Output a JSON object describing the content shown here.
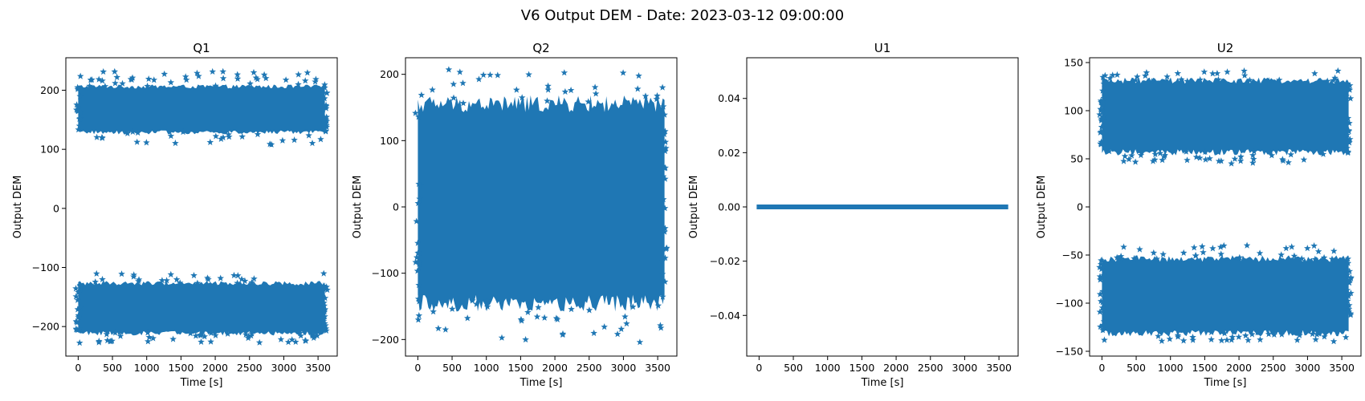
{
  "figure": {
    "title": "V6 Output DEM - Date: 2023-03-12 09:00:00"
  },
  "colors": {
    "series": "#1f77b4",
    "axes": "#000000",
    "background": "#ffffff"
  },
  "chart_data": [
    {
      "type": "scatter",
      "title": "Q1",
      "xlabel": "Time [s]",
      "ylabel": "Output DEM",
      "xlim": [
        -180,
        3780
      ],
      "ylim": [
        -250,
        255
      ],
      "xticks": [
        0,
        500,
        1000,
        1500,
        2000,
        2500,
        3000,
        3500
      ],
      "yticks": [
        -200,
        -100,
        0,
        100,
        200
      ],
      "marker": "star",
      "bands": [
        {
          "y_low": 130,
          "y_high": 205,
          "outlier_low": 108,
          "outlier_high": 232
        },
        {
          "y_low": -210,
          "y_high": -128,
          "outlier_low": -228,
          "outlier_high": -110
        }
      ],
      "x_range": [
        0,
        3600
      ]
    },
    {
      "type": "scatter",
      "title": "Q2",
      "xlabel": "Time [s]",
      "ylabel": "Output DEM",
      "xlim": [
        -180,
        3780
      ],
      "ylim": [
        -225,
        225
      ],
      "xticks": [
        0,
        500,
        1000,
        1500,
        2000,
        2500,
        3000,
        3500
      ],
      "yticks": [
        -200,
        -100,
        0,
        100,
        200
      ],
      "marker": "star",
      "bands": [
        {
          "y_low": -140,
          "y_high": 150,
          "outlier_low": -205,
          "outlier_high": 210
        }
      ],
      "x_range": [
        0,
        3600
      ]
    },
    {
      "type": "scatter",
      "title": "U1",
      "xlabel": "Time [s]",
      "ylabel": "Output DEM",
      "xlim": [
        -180,
        3780
      ],
      "ylim": [
        -0.055,
        0.055
      ],
      "xticks": [
        0,
        500,
        1000,
        1500,
        2000,
        2500,
        3000,
        3500
      ],
      "yticks": [
        -0.04,
        -0.02,
        0.0,
        0.02,
        0.04
      ],
      "ytick_labels": [
        "−0.04",
        "−0.02",
        "0.00",
        "0.02",
        "0.04"
      ],
      "marker": "star",
      "bands": [
        {
          "y_low": 0,
          "y_high": 0,
          "outlier_low": 0,
          "outlier_high": 0
        }
      ],
      "x_range": [
        0,
        3600
      ]
    },
    {
      "type": "scatter",
      "title": "U2",
      "xlabel": "Time [s]",
      "ylabel": "Output DEM",
      "xlim": [
        -180,
        3780
      ],
      "ylim": [
        -155,
        155
      ],
      "xticks": [
        0,
        500,
        1000,
        1500,
        2000,
        2500,
        3000,
        3500
      ],
      "yticks": [
        -150,
        -100,
        -50,
        0,
        50,
        100,
        150
      ],
      "marker": "star",
      "bands": [
        {
          "y_low": 58,
          "y_high": 130,
          "outlier_low": 45,
          "outlier_high": 142
        },
        {
          "y_low": -130,
          "y_high": -55,
          "outlier_low": -140,
          "outlier_high": -40
        }
      ],
      "x_range": [
        0,
        3600
      ]
    }
  ]
}
